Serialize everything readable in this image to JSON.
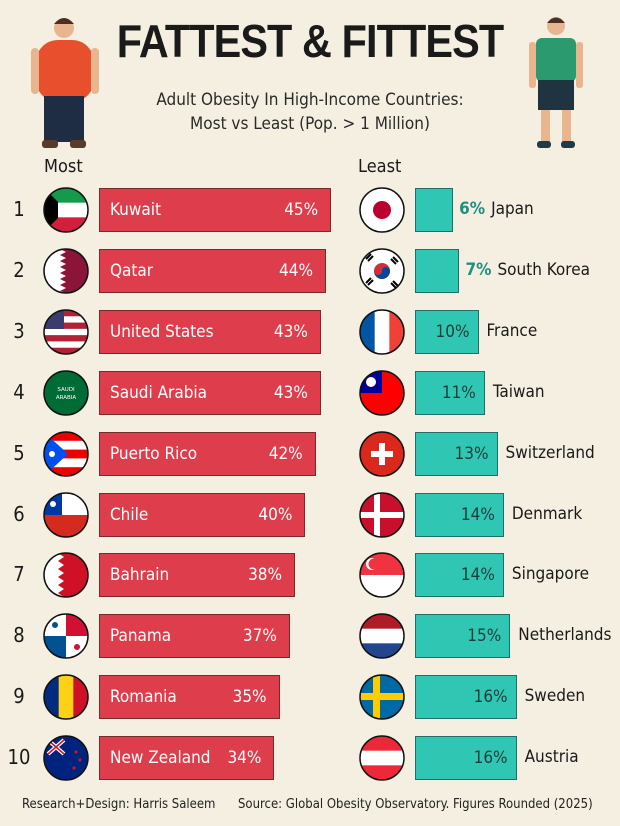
{
  "chart_data": {
    "type": "bar",
    "title": "FATTEST & FITTEST",
    "subtitle": [
      "Adult Obesity In High-Income Countries:",
      "Most vs Least (Pop. > 1 Million)"
    ],
    "groups": [
      {
        "name": "Most",
        "color": "#de3d4b",
        "ranks": [
          1,
          2,
          3,
          4,
          5,
          6,
          7,
          8,
          9,
          10
        ],
        "categories": [
          "Kuwait",
          "Qatar",
          "United States",
          "Saudi Arabia",
          "Puerto Rico",
          "Chile",
          "Bahrain",
          "Panama",
          "Romania",
          "New Zealand"
        ],
        "values": [
          45,
          44,
          43,
          43,
          42,
          40,
          38,
          37,
          35,
          34
        ],
        "labels": [
          "45%",
          "44%",
          "43%",
          "43%",
          "42%",
          "40%",
          "38%",
          "37%",
          "35%",
          "34%"
        ]
      },
      {
        "name": "Least",
        "color": "#2fc6b3",
        "categories": [
          "Japan",
          "South Korea",
          "France",
          "Taiwan",
          "Switzerland",
          "Denmark",
          "Singapore",
          "Netherlands",
          "Sweden",
          "Austria"
        ],
        "values": [
          6,
          7,
          10,
          11,
          13,
          14,
          14,
          15,
          16,
          16
        ],
        "labels": [
          "6%",
          "7%",
          "10%",
          "11%",
          "13%",
          "14%",
          "14%",
          "15%",
          "16%",
          "16%"
        ]
      }
    ],
    "flag_text": {
      "saudi": "SAUDI ARABIA"
    }
  },
  "footer": {
    "credit": "Research+Design: Harris Saleem",
    "source": "Source: Global Obesity Observatory. Figures Rounded (2025)"
  }
}
